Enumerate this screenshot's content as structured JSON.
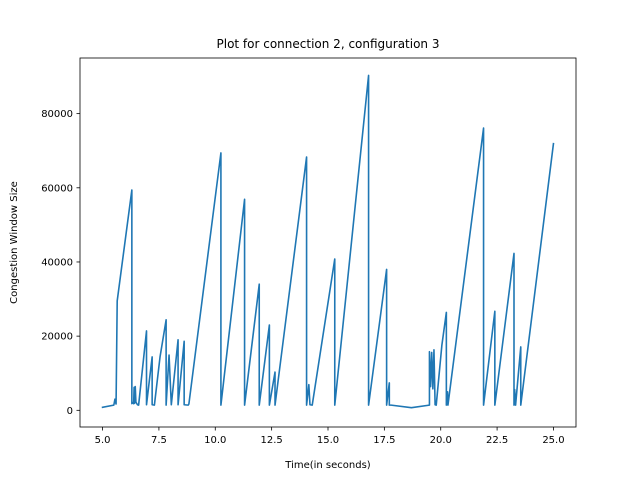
{
  "chart_data": {
    "type": "line",
    "title": "Plot for connection 2, configuration 3",
    "xlabel": "Time(in seconds)",
    "ylabel": "Congestion Window Size",
    "xlim": [
      4.0,
      26.0
    ],
    "ylim": [
      -4500,
      95000
    ],
    "xticks": [
      5.0,
      7.5,
      10.0,
      12.5,
      15.0,
      17.5,
      20.0,
      22.5,
      25.0
    ],
    "xtick_labels": [
      "5.0",
      "7.5",
      "10.0",
      "12.5",
      "15.0",
      "17.5",
      "20.0",
      "22.5",
      "25.0"
    ],
    "yticks": [
      0,
      20000,
      40000,
      60000,
      80000
    ],
    "ytick_labels": [
      "0",
      "20000",
      "40000",
      "60000",
      "80000"
    ],
    "grid": false,
    "line_color": "#1f77b4",
    "series": [
      {
        "x": [
          5.0,
          5.5,
          5.55,
          5.6,
          5.65,
          6.3,
          6.3,
          6.33,
          6.38,
          6.4,
          6.42,
          6.45,
          6.48,
          6.55,
          6.6,
          6.95,
          6.95,
          7.2,
          7.2,
          7.3,
          7.55,
          7.82,
          7.82,
          7.95,
          8.05,
          8.35,
          8.35,
          8.62,
          8.62,
          8.8,
          8.83,
          10.25,
          10.25,
          11.3,
          11.3,
          11.95,
          11.95,
          12.4,
          12.4,
          12.65,
          12.65,
          14.05,
          14.05,
          14.15,
          14.2,
          14.3,
          15.3,
          15.3,
          16.8,
          16.8,
          17.6,
          17.6,
          17.72,
          17.72,
          17.8,
          18.7,
          19.5,
          19.5,
          19.55,
          19.6,
          19.65,
          19.7,
          19.75,
          19.8,
          20.05,
          20.25,
          20.25,
          20.3,
          20.32,
          21.9,
          21.9,
          22.4,
          22.4,
          23.25,
          23.25,
          23.28,
          23.32,
          23.55,
          23.55,
          25.0
        ],
        "y": [
          800,
          1400,
          3000,
          1700,
          29500,
          59400,
          1800,
          2100,
          1800,
          6200,
          1900,
          6400,
          2200,
          1500,
          1400,
          21400,
          1500,
          14400,
          1500,
          1400,
          14400,
          24400,
          1400,
          14900,
          1500,
          19000,
          1500,
          18600,
          1500,
          1400,
          1700,
          69400,
          1400,
          56900,
          1400,
          34000,
          1400,
          23000,
          1400,
          10300,
          1400,
          68300,
          1400,
          6900,
          1500,
          1400,
          40800,
          1400,
          90300,
          1400,
          38000,
          1400,
          7400,
          1400,
          1400,
          700,
          1400,
          15800,
          6400,
          15600,
          5800,
          16300,
          1500,
          1400,
          17500,
          26400,
          1400,
          5000,
          1400,
          76100,
          1400,
          26700,
          1400,
          42300,
          1400,
          5600,
          1400,
          17100,
          1400,
          71900
        ]
      }
    ]
  }
}
